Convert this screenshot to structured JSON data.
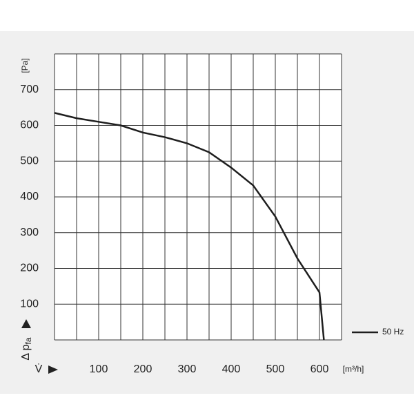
{
  "chart_data": {
    "type": "line",
    "x_label": "V̇",
    "x_unit": "[m³/h]",
    "y_label": "Δ p",
    "y_label_sub": "fa",
    "y_unit": "[Pa]",
    "xlim": [
      0,
      650
    ],
    "ylim": [
      0,
      800
    ],
    "xticks": [
      100,
      200,
      300,
      400,
      500,
      600
    ],
    "yticks": [
      100,
      200,
      300,
      400,
      500,
      600,
      700
    ],
    "xgrid": [
      0,
      50,
      100,
      150,
      200,
      250,
      300,
      350,
      400,
      450,
      500,
      550,
      600,
      650
    ],
    "ygrid": [
      0,
      100,
      200,
      300,
      400,
      500,
      600,
      700,
      800
    ],
    "legend": "right",
    "series": [
      {
        "name": "50 Hz",
        "color": "#1e1e1e",
        "x": [
          0,
          50,
          100,
          150,
          200,
          250,
          300,
          350,
          400,
          450,
          500,
          550,
          600,
          610
        ],
        "values": [
          635,
          620,
          610,
          600,
          580,
          567,
          550,
          525,
          482,
          432,
          345,
          228,
          133,
          0
        ]
      }
    ]
  }
}
